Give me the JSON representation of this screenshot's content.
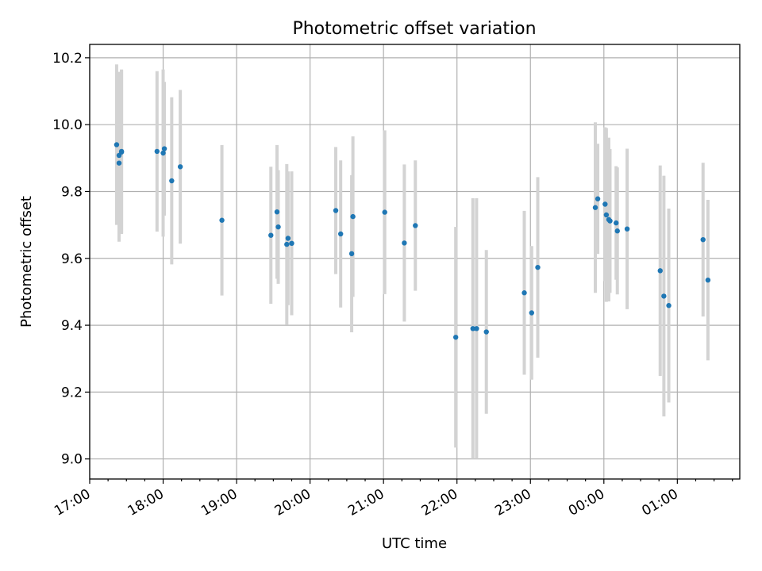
{
  "chart_data": {
    "type": "scatter",
    "title": "Photometric offset variation",
    "xlabel": "UTC time",
    "ylabel": "Photometric offset",
    "xlim": [
      "17:00",
      "01:51"
    ],
    "ylim": [
      8.94,
      10.24
    ],
    "x_ticks": [
      "17:00",
      "18:00",
      "19:00",
      "20:00",
      "21:00",
      "22:00",
      "23:00",
      "00:00",
      "01:00"
    ],
    "y_ticks": [
      "9.0",
      "9.2",
      "9.4",
      "9.6",
      "9.8",
      "10.0",
      "10.2"
    ],
    "grid": true,
    "errorbar_color": "#d3d3d3",
    "marker_color": "#1f77b4",
    "series": [
      {
        "x": [
          "17:22",
          "17:24",
          "17:24",
          "17:26",
          "17:26",
          "17:55",
          "18:00",
          "18:01",
          "18:07",
          "18:14",
          "18:48",
          "19:28",
          "19:33",
          "19:34",
          "19:41",
          "19:42",
          "19:45",
          "20:21",
          "20:25",
          "20:34",
          "20:35",
          "21:01",
          "21:17",
          "21:26",
          "21:59",
          "22:13",
          "22:16",
          "22:24",
          "22:55",
          "23:01",
          "23:06",
          "23:53",
          "23:55",
          "00:01",
          "00:02",
          "00:04",
          "00:05",
          "00:10",
          "00:11",
          "00:19",
          "00:46",
          "00:49",
          "00:53",
          "01:21",
          "01:25"
        ],
        "y": [
          9.94,
          9.885,
          9.908,
          9.92,
          9.918,
          9.92,
          9.915,
          9.928,
          9.832,
          9.874,
          9.714,
          9.669,
          9.739,
          9.694,
          9.642,
          9.66,
          9.645,
          9.743,
          9.673,
          9.614,
          9.725,
          9.738,
          9.646,
          9.698,
          9.364,
          9.39,
          9.39,
          9.38,
          9.497,
          9.437,
          9.573,
          9.752,
          9.778,
          9.762,
          9.73,
          9.716,
          9.712,
          9.706,
          9.682,
          9.688,
          9.563,
          9.487,
          9.459,
          9.656,
          9.535
        ],
        "yerr": [
          0.24,
          0.235,
          0.25,
          0.245,
          0.245,
          0.24,
          0.25,
          0.2,
          0.25,
          0.23,
          0.225,
          0.205,
          0.2,
          0.17,
          0.24,
          0.2,
          0.215,
          0.19,
          0.22,
          0.235,
          0.24,
          0.245,
          0.235,
          0.195,
          0.33,
          0.39,
          0.39,
          0.245,
          0.245,
          0.2,
          0.27,
          0.255,
          0.165,
          0.23,
          0.26,
          0.245,
          0.215,
          0.17,
          0.19,
          0.24,
          0.315,
          0.36,
          0.29,
          0.23,
          0.24
        ]
      }
    ]
  }
}
